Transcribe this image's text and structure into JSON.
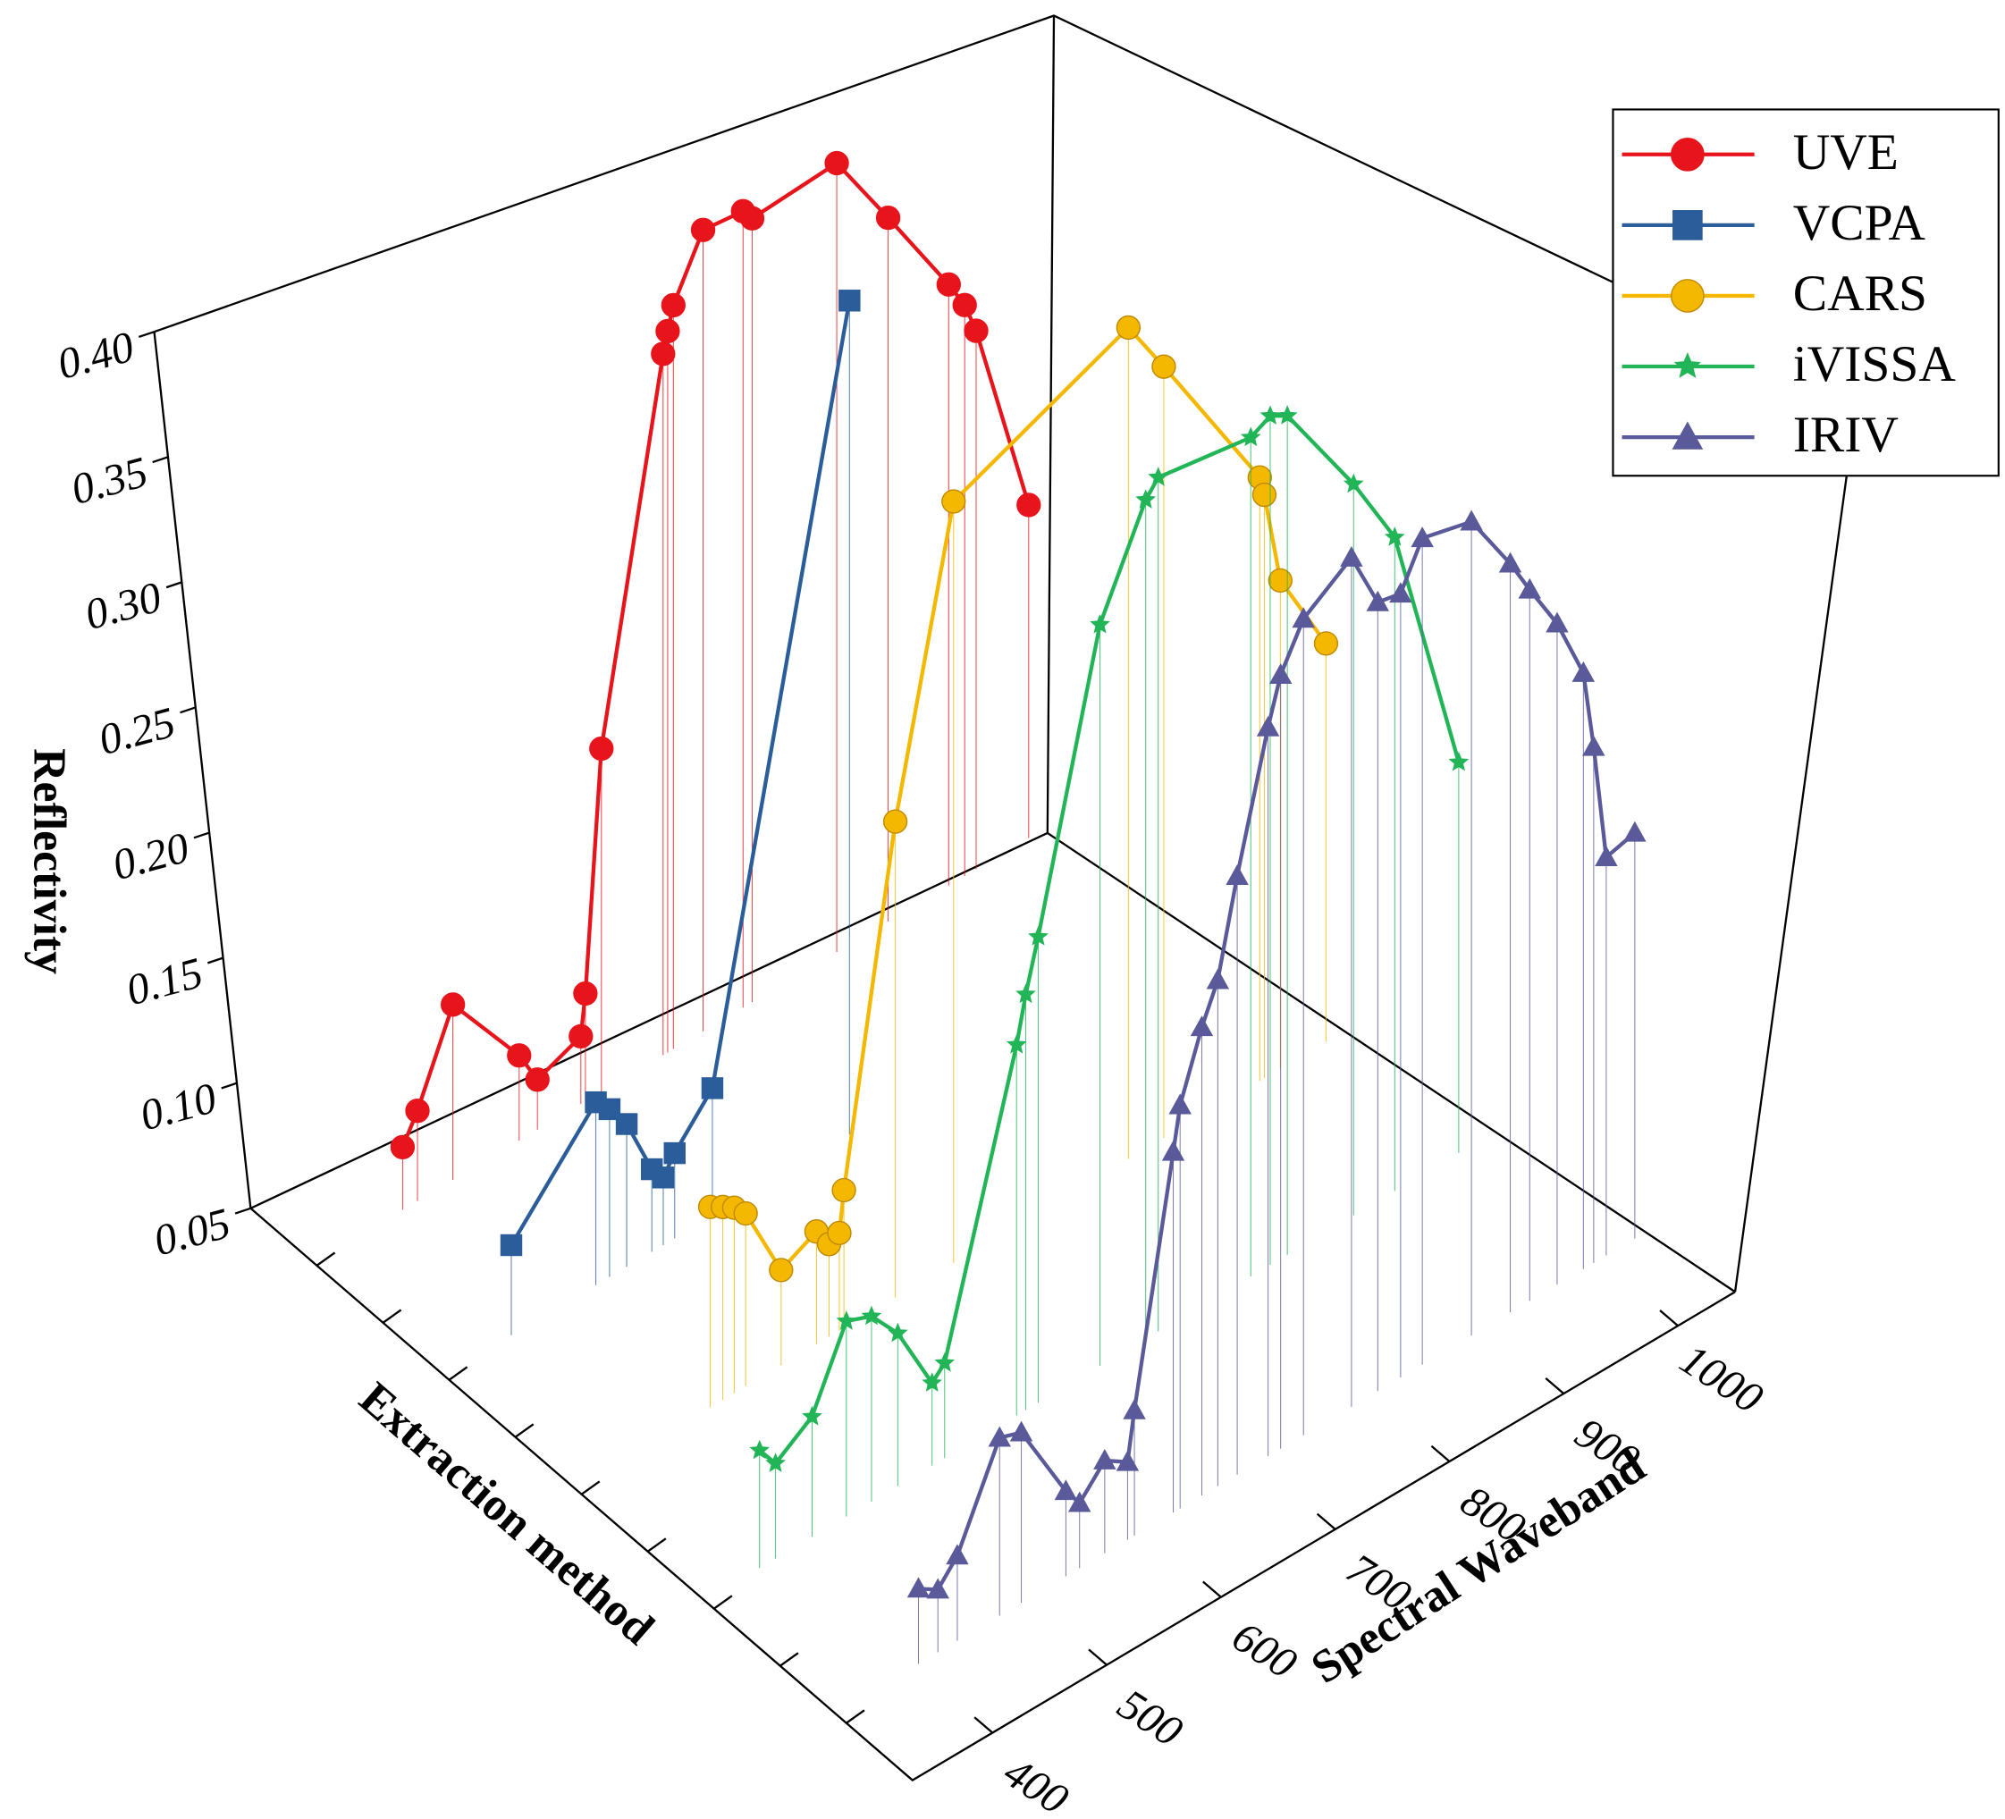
{
  "chart_data": {
    "type": "line3d",
    "xlabel": "Spectral Waveband",
    "ylabel": "Extraction method",
    "zlabel": "Reflectivity",
    "xlim": [
      330,
      1050
    ],
    "xticks": [
      400,
      500,
      600,
      700,
      800,
      900,
      1000
    ],
    "zlim": [
      0.05,
      0.4
    ],
    "zticks": [
      0.05,
      {
        "value": 0.1,
        "label": "0.10"
      },
      0.15,
      {
        "value": 0.2,
        "label": "0.20"
      },
      0.25,
      {
        "value": 0.3,
        "label": "0.30"
      },
      0.35,
      {
        "value": 0.4,
        "label": "0.40"
      }
    ],
    "legend": "top-right",
    "series": [
      {
        "name": "UVE",
        "color": "#e8141b",
        "marker": "circle",
        "x": [
          408,
          421,
          452,
          510,
          526,
          564,
          568,
          582,
          636,
          640,
          645,
          671,
          706,
          714,
          788,
          833,
          886,
          900,
          910,
          956
        ],
        "values": [
          0.075,
          0.086,
          0.12,
          0.084,
          0.07,
          0.077,
          0.093,
          0.187,
          0.33,
          0.338,
          0.347,
          0.37,
          0.368,
          0.363,
          0.365,
          0.331,
          0.29,
          0.278,
          0.265,
          0.183
        ]
      },
      {
        "name": "VCPA",
        "color": "#2a5d9a",
        "marker": "square",
        "x": [
          389,
          463,
          475,
          490,
          512,
          522,
          532,
          565,
          685
        ],
        "values": [
          0.086,
          0.123,
          0.117,
          0.107,
          0.083,
          0.077,
          0.084,
          0.101,
          0.383
        ]
      },
      {
        "name": "CARS",
        "color": "#f5b800",
        "marker": "ball",
        "x": [
          449,
          460,
          470,
          480,
          511,
          542,
          553,
          562,
          566,
          611,
          662,
          815,
          846,
          930,
          934,
          948,
          988
        ],
        "values": [
          0.13,
          0.127,
          0.124,
          0.119,
          0.088,
          0.095,
          0.087,
          0.089,
          0.105,
          0.24,
          0.354,
          0.382,
          0.358,
          0.291,
          0.283,
          0.245,
          0.209
        ]
      },
      {
        "name": "iVISSA",
        "color": "#22b557",
        "marker": "star",
        "x": [
          378,
          392,
          424,
          454,
          476,
          499,
          529,
          540,
          603,
          611,
          622,
          676,
          716,
          727,
          808,
          825,
          840,
          898,
          934,
          990
        ],
        "values": [
          0.097,
          0.088,
          0.098,
          0.128,
          0.124,
          0.111,
          0.083,
          0.088,
          0.198,
          0.216,
          0.236,
          0.346,
          0.385,
          0.391,
          0.385,
          0.389,
          0.385,
          0.342,
          0.311,
          0.206
        ]
      },
      {
        "name": "IRIV",
        "color": "#5a5a9a",
        "marker": "triangle",
        "x": [
          403,
          420,
          437,
          474,
          493,
          532,
          544,
          566,
          586,
          592,
          626,
          632,
          651,
          665,
          682,
          709,
          720,
          740,
          782,
          805,
          825,
          844,
          887,
          921,
          938,
          962,
          985,
          994,
          1005,
          1030
        ],
        "values": [
          0.08,
          0.075,
          0.084,
          0.121,
          0.118,
          0.084,
          0.076,
          0.087,
          0.081,
          0.1,
          0.194,
          0.211,
          0.237,
          0.252,
          0.289,
          0.341,
          0.359,
          0.376,
          0.389,
          0.365,
          0.363,
          0.38,
          0.375,
          0.349,
          0.334,
          0.314,
          0.288,
          0.256,
          0.209,
          0.212
        ]
      }
    ]
  }
}
